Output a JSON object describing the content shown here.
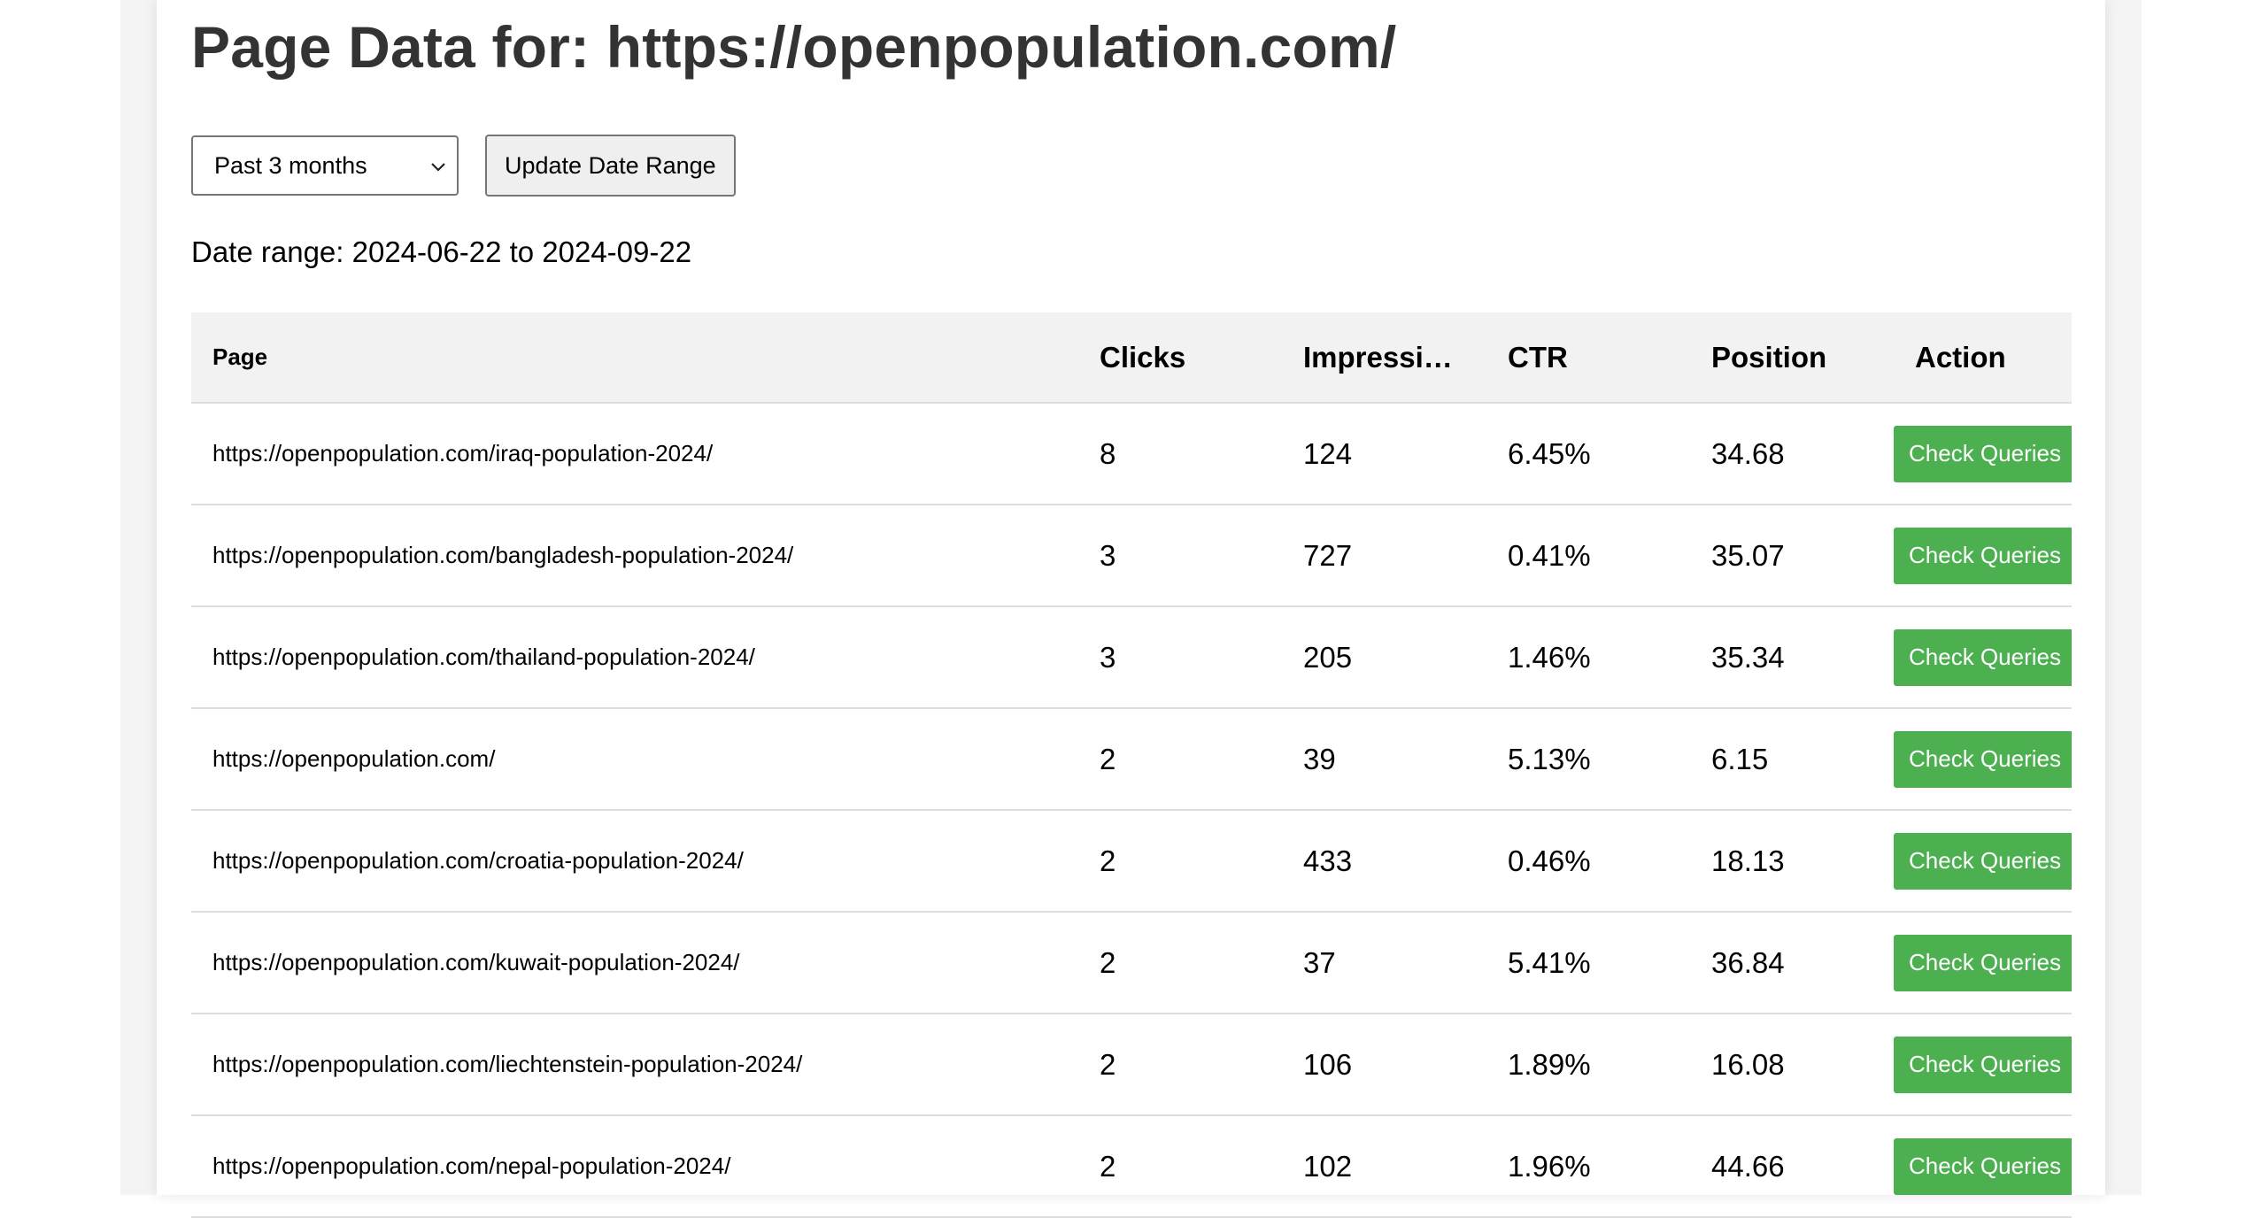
{
  "header": {
    "title": "Page Data for: https://openpopulation.com/"
  },
  "controls": {
    "range_selected": "Past 3 months",
    "update_label": "Update Date Range"
  },
  "date_range": {
    "text": "Date range: 2024-06-22 to 2024-09-22"
  },
  "table": {
    "headers": {
      "page": "Page",
      "clicks": "Clicks",
      "impressions": "Impressi…",
      "ctr": "CTR",
      "position": "Position",
      "action": "Action"
    },
    "action_label": "Check Queries",
    "rows": [
      {
        "page": "https://openpopulation.com/iraq-population-2024/",
        "clicks": "8",
        "impressions": "124",
        "ctr": "6.45%",
        "position": "34.68"
      },
      {
        "page": "https://openpopulation.com/bangladesh-population-2024/",
        "clicks": "3",
        "impressions": "727",
        "ctr": "0.41%",
        "position": "35.07"
      },
      {
        "page": "https://openpopulation.com/thailand-population-2024/",
        "clicks": "3",
        "impressions": "205",
        "ctr": "1.46%",
        "position": "35.34"
      },
      {
        "page": "https://openpopulation.com/",
        "clicks": "2",
        "impressions": "39",
        "ctr": "5.13%",
        "position": "6.15"
      },
      {
        "page": "https://openpopulation.com/croatia-population-2024/",
        "clicks": "2",
        "impressions": "433",
        "ctr": "0.46%",
        "position": "18.13"
      },
      {
        "page": "https://openpopulation.com/kuwait-population-2024/",
        "clicks": "2",
        "impressions": "37",
        "ctr": "5.41%",
        "position": "36.84"
      },
      {
        "page": "https://openpopulation.com/liechtenstein-population-2024/",
        "clicks": "2",
        "impressions": "106",
        "ctr": "1.89%",
        "position": "16.08"
      },
      {
        "page": "https://openpopulation.com/nepal-population-2024/",
        "clicks": "2",
        "impressions": "102",
        "ctr": "1.96%",
        "position": "44.66"
      }
    ]
  },
  "colors": {
    "action_button": "#4caf50",
    "header_bg": "#f2f2f2"
  },
  "icons": {
    "select_arrow": "chevron-down-icon"
  }
}
